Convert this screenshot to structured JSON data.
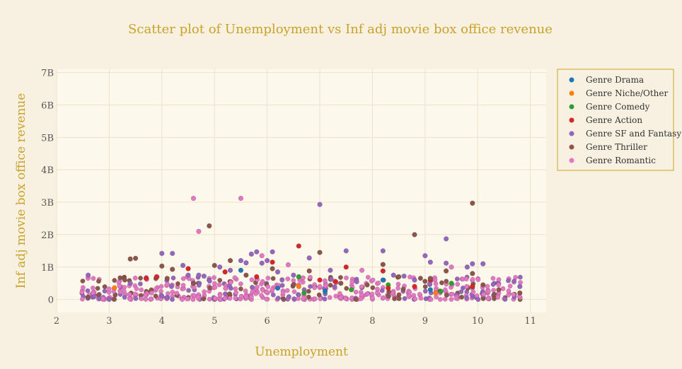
{
  "chart_data": {
    "type": "scatter",
    "title": "Scatter plot of Unemployment vs Inf adj movie box office revenue",
    "xlabel": "Unemployment",
    "ylabel": "Inf adj movie box office revenue",
    "xlim": [
      2,
      11.3
    ],
    "ylim": [
      -0.4,
      7.1
    ],
    "x_ticks": [
      2,
      3,
      4,
      5,
      6,
      7,
      8,
      9,
      10,
      11
    ],
    "x_tick_labels": [
      "2",
      "3",
      "4",
      "5",
      "6",
      "7",
      "8",
      "9",
      "10",
      "11"
    ],
    "y_ticks": [
      0,
      1,
      2,
      3,
      4,
      5,
      6,
      7
    ],
    "y_tick_labels": [
      "0",
      "1B",
      "2B",
      "3B",
      "4B",
      "5B",
      "6B",
      "7B"
    ],
    "grid": true,
    "legend_position": "top-right",
    "background_color": "#f8f1e2",
    "plot_background_color": "#fcf8eb",
    "series": [
      {
        "name": "Genre Drama",
        "color": "#1f77b4",
        "points": [
          [
            4.6,
            0.5
          ],
          [
            5.5,
            0.9
          ],
          [
            6.2,
            0.35
          ],
          [
            7.1,
            0.25
          ],
          [
            8.2,
            0.6
          ],
          [
            9.1,
            0.3
          ],
          [
            9.9,
            0.4
          ]
        ]
      },
      {
        "name": "Genre Niche/Other",
        "color": "#ff7f0e",
        "points": [
          [
            3.1,
            0.36
          ],
          [
            6.6,
            0.4
          ],
          [
            9.2,
            0.2
          ]
        ]
      },
      {
        "name": "Genre Comedy",
        "color": "#2ca02c",
        "points": [
          [
            6.6,
            0.7
          ],
          [
            6.7,
            0.2
          ],
          [
            8.3,
            0.45
          ],
          [
            9.5,
            0.5
          ],
          [
            9.3,
            0.25
          ],
          [
            7.6,
            0.3
          ]
        ]
      },
      {
        "name": "Genre Action",
        "color": "#d62728",
        "points": [
          [
            3.7,
            0.65
          ],
          [
            3.9,
            0.7
          ],
          [
            4.5,
            0.95
          ],
          [
            5.2,
            0.85
          ],
          [
            5.8,
            0.7
          ],
          [
            6.1,
            1.15
          ],
          [
            6.6,
            1.65
          ],
          [
            7.0,
            0.6
          ],
          [
            7.3,
            0.55
          ],
          [
            7.5,
            1.0
          ],
          [
            8.2,
            0.88
          ],
          [
            8.3,
            0.35
          ],
          [
            8.8,
            0.4
          ],
          [
            9.1,
            0.6
          ],
          [
            9.9,
            0.4
          ]
        ]
      },
      {
        "name": "Genre SF and Fantasy",
        "color": "#9467bd",
        "points": [
          [
            2.6,
            0.75
          ],
          [
            3.4,
            0.5
          ],
          [
            4.0,
            1.42
          ],
          [
            4.2,
            1.42
          ],
          [
            4.4,
            1.05
          ],
          [
            4.5,
            0.75
          ],
          [
            4.7,
            0.75
          ],
          [
            4.8,
            0.72
          ],
          [
            5.1,
            1.0
          ],
          [
            5.3,
            0.9
          ],
          [
            5.5,
            1.2
          ],
          [
            5.6,
            1.13
          ],
          [
            5.7,
            1.4
          ],
          [
            5.8,
            1.47
          ],
          [
            5.9,
            1.12
          ],
          [
            6.0,
            1.2
          ],
          [
            6.1,
            1.47
          ],
          [
            6.2,
            0.85
          ],
          [
            6.5,
            0.75
          ],
          [
            6.8,
            1.28
          ],
          [
            7.0,
            2.93
          ],
          [
            7.2,
            0.9
          ],
          [
            7.5,
            1.5
          ],
          [
            7.7,
            0.55
          ],
          [
            8.2,
            1.5
          ],
          [
            8.4,
            0.75
          ],
          [
            8.6,
            0.72
          ],
          [
            8.8,
            0.6
          ],
          [
            9.0,
            1.35
          ],
          [
            9.1,
            1.15
          ],
          [
            9.4,
            1.87
          ],
          [
            9.4,
            1.12
          ],
          [
            9.8,
            1.0
          ],
          [
            9.9,
            1.1
          ],
          [
            10.1,
            1.1
          ],
          [
            10.8,
            0.4
          ]
        ]
      },
      {
        "name": "Genre Thriller",
        "color": "#8c564b",
        "points": [
          [
            3.4,
            1.25
          ],
          [
            3.5,
            1.27
          ],
          [
            4.0,
            1.03
          ],
          [
            4.1,
            0.65
          ],
          [
            4.2,
            0.93
          ],
          [
            4.6,
            0.5
          ],
          [
            4.9,
            2.27
          ],
          [
            5.0,
            1.05
          ],
          [
            5.3,
            1.2
          ],
          [
            5.6,
            0.75
          ],
          [
            6.1,
            0.95
          ],
          [
            6.8,
            0.88
          ],
          [
            7.0,
            1.45
          ],
          [
            7.4,
            0.5
          ],
          [
            7.9,
            0.45
          ],
          [
            8.2,
            1.08
          ],
          [
            8.5,
            0.7
          ],
          [
            8.8,
            2.0
          ],
          [
            9.1,
            0.65
          ],
          [
            9.4,
            0.88
          ],
          [
            9.9,
            2.97
          ],
          [
            9.9,
            0.8
          ],
          [
            10.1,
            0.45
          ],
          [
            10.4,
            0.3
          ],
          [
            10.8,
            0.2
          ]
        ]
      },
      {
        "name": "Genre Romantic",
        "color": "#e377c2",
        "points": [
          [
            4.6,
            3.12
          ],
          [
            4.7,
            2.1
          ],
          [
            5.5,
            3.12
          ],
          [
            5.9,
            1.35
          ],
          [
            6.4,
            1.07
          ],
          [
            7.8,
            0.9
          ],
          [
            9.5,
            1.0
          ],
          [
            10.2,
            0.25
          ]
        ]
      }
    ],
    "background_cluster": {
      "note": "dense overlapping markers (mostly Genre Romantic / Thriller) near the bottom of the plot",
      "x_min": 2.5,
      "x_max": 10.8,
      "x_step": 0.1,
      "y_max": 0.7,
      "colors": [
        "#e377c2",
        "#e377c2",
        "#e377c2",
        "#8c564b",
        "#9467bd",
        "#e377c2"
      ]
    }
  }
}
